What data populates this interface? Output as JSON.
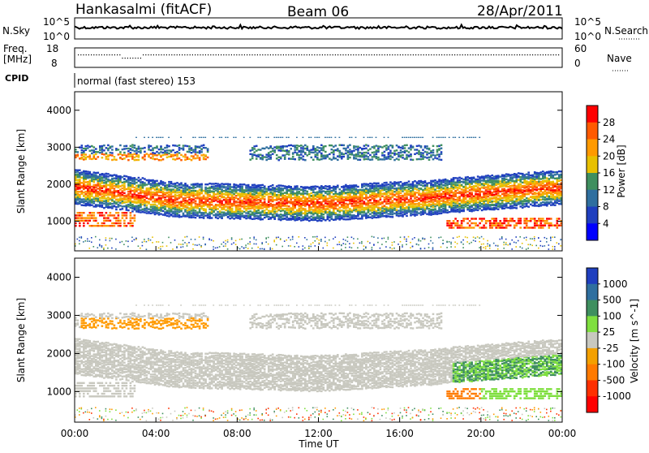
{
  "header": {
    "station": "Hankasalmi (fitACF)",
    "beam": "Beam 06",
    "date": "28/Apr/2011"
  },
  "noise_panel": {
    "left_label": "N.Sky",
    "right_label": "N.Search",
    "left_ticks": [
      "10^5",
      "10^0"
    ],
    "right_ticks": [
      "10^5",
      "10^0"
    ]
  },
  "freq_panel": {
    "left_label_1": "Freq.",
    "left_label_2": "[MHz]",
    "right_label": "Nave",
    "left_ticks": [
      "18",
      "8"
    ],
    "right_ticks": [
      "60",
      "0"
    ]
  },
  "cpid": {
    "label": "CPID",
    "text": "normal (fast stereo) 153"
  },
  "chart_data": [
    {
      "type": "heatmap",
      "quantity": "Power",
      "xlabel": "",
      "ylabel": "Slant Range [km]",
      "x_range": [
        "00:00",
        "24:00"
      ],
      "ylim": [
        200,
        4500
      ],
      "yticks": [
        "1000",
        "2000",
        "3000",
        "4000"
      ],
      "colorbar": {
        "label": "Power [dB]",
        "ticks": [
          "28",
          "24",
          "20",
          "16",
          "12",
          "8",
          "4"
        ],
        "colors": [
          "#ff0000",
          "#ff5a00",
          "#ff9a00",
          "#e8c000",
          "#3f8f5f",
          "#2f6f9f",
          "#1f3fbf",
          "#0000ff"
        ]
      }
    },
    {
      "type": "heatmap",
      "quantity": "Velocity",
      "xlabel": "Time UT",
      "ylabel": "Slant Range [km]",
      "x_range": [
        "00:00",
        "24:00"
      ],
      "ylim": [
        200,
        4500
      ],
      "yticks": [
        "1000",
        "2000",
        "3000",
        "4000"
      ],
      "xticks": [
        "00:00",
        "04:00",
        "08:00",
        "12:00",
        "16:00",
        "20:00",
        "00:00"
      ],
      "colorbar": {
        "label": "Velocity [m s^-1]",
        "ticks": [
          "1000",
          "500",
          "100",
          "25",
          "-25",
          "-100",
          "-500",
          "-1000"
        ],
        "colors": [
          "#1f3fbf",
          "#2f6f9f",
          "#3f8f5f",
          "#7fdf3f",
          "#c8c8bf",
          "#f4a000",
          "#ff7a00",
          "#ff3000",
          "#ff0000"
        ]
      }
    }
  ]
}
